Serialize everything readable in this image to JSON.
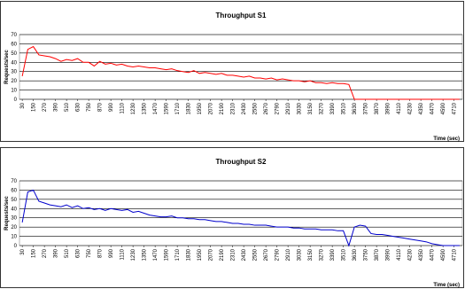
{
  "chart_data": [
    {
      "type": "line",
      "title": "Throughput S1",
      "y_label": "Requests/sec",
      "x_label": "Time (sec)",
      "color": "#ff0000",
      "grid": true,
      "x": [
        30,
        90,
        150,
        210,
        270,
        330,
        390,
        450,
        510,
        570,
        630,
        690,
        750,
        810,
        870,
        930,
        990,
        1050,
        1110,
        1170,
        1230,
        1290,
        1350,
        1410,
        1470,
        1530,
        1590,
        1650,
        1710,
        1770,
        1830,
        1890,
        1950,
        2010,
        2070,
        2130,
        2190,
        2250,
        2310,
        2370,
        2430,
        2490,
        2550,
        2610,
        2670,
        2730,
        2790,
        2850,
        2910,
        2970,
        3030,
        3090,
        3150,
        3210,
        3270,
        3330,
        3390,
        3450,
        3510,
        3570,
        3630,
        3690,
        3750,
        3810,
        3870,
        3930,
        3990,
        4050,
        4110,
        4170,
        4230,
        4290,
        4350,
        4410,
        4470,
        4530,
        4590,
        4650,
        4710,
        4770
      ],
      "values": [
        25,
        54,
        57,
        48,
        47,
        46,
        44,
        41,
        43,
        42,
        44,
        40,
        40,
        36,
        41,
        38,
        39,
        37,
        38,
        36,
        35,
        36,
        35,
        34,
        34,
        33,
        32,
        33,
        31,
        30,
        29,
        31,
        28,
        29,
        28,
        27,
        28,
        26,
        26,
        25,
        24,
        25,
        23,
        23,
        22,
        23,
        21,
        22,
        21,
        20,
        20,
        19,
        20,
        18,
        18,
        17,
        18,
        17,
        17,
        16,
        0,
        0,
        0,
        0,
        0,
        0,
        0,
        0,
        0,
        0,
        0,
        0,
        0,
        0,
        0,
        0,
        0,
        0,
        0,
        0
      ],
      "xlim": [
        0,
        4800
      ],
      "xticks": [
        30,
        150,
        270,
        390,
        510,
        630,
        750,
        870,
        990,
        1110,
        1230,
        1350,
        1470,
        1590,
        1710,
        1830,
        1950,
        2070,
        2190,
        2310,
        2430,
        2550,
        2670,
        2790,
        2910,
        3030,
        3150,
        3270,
        3390,
        3510,
        3630,
        3750,
        3870,
        3990,
        4110,
        4230,
        4350,
        4470,
        4590,
        4710
      ],
      "ylim": [
        0,
        70
      ],
      "yticks": [
        0,
        10,
        20,
        30,
        40,
        50,
        60,
        70
      ]
    },
    {
      "type": "line",
      "title": "Throughput S2",
      "y_label": "Requests/sec",
      "x_label": "Time (sec)",
      "color": "#0000cc",
      "grid": true,
      "x": [
        30,
        90,
        150,
        210,
        270,
        330,
        390,
        450,
        510,
        570,
        630,
        690,
        750,
        810,
        870,
        930,
        990,
        1050,
        1110,
        1170,
        1230,
        1290,
        1350,
        1410,
        1470,
        1530,
        1590,
        1650,
        1710,
        1770,
        1830,
        1890,
        1950,
        2010,
        2070,
        2130,
        2190,
        2250,
        2310,
        2370,
        2430,
        2490,
        2550,
        2610,
        2670,
        2730,
        2790,
        2850,
        2910,
        2970,
        3030,
        3090,
        3150,
        3210,
        3270,
        3330,
        3390,
        3450,
        3510,
        3570,
        3630,
        3690,
        3750,
        3810,
        3870,
        3930,
        3990,
        4050,
        4110,
        4170,
        4230,
        4290,
        4350,
        4410,
        4470,
        4530,
        4590,
        4650,
        4710,
        4770
      ],
      "values": [
        25,
        58,
        60,
        48,
        46,
        44,
        43,
        42,
        44,
        41,
        43,
        40,
        41,
        39,
        40,
        38,
        40,
        39,
        38,
        39,
        36,
        37,
        35,
        33,
        32,
        31,
        31,
        32,
        30,
        30,
        29,
        29,
        28,
        28,
        27,
        26,
        26,
        25,
        24,
        24,
        23,
        23,
        22,
        22,
        22,
        21,
        20,
        20,
        20,
        19,
        19,
        18,
        18,
        18,
        17,
        17,
        17,
        16,
        16,
        0,
        20,
        22,
        21,
        13,
        12,
        12,
        11,
        10,
        9,
        8,
        7,
        6,
        5,
        4,
        2,
        1,
        0,
        0,
        0,
        0
      ],
      "xlim": [
        0,
        4800
      ],
      "xticks": [
        30,
        150,
        270,
        390,
        510,
        630,
        750,
        870,
        990,
        1110,
        1230,
        1350,
        1470,
        1590,
        1710,
        1830,
        1950,
        2070,
        2190,
        2310,
        2430,
        2550,
        2670,
        2790,
        2910,
        3030,
        3150,
        3270,
        3390,
        3510,
        3630,
        3750,
        3870,
        3990,
        4110,
        4230,
        4350,
        4470,
        4590,
        4710
      ],
      "ylim": [
        0,
        70
      ],
      "yticks": [
        0,
        10,
        20,
        30,
        40,
        50,
        60,
        70
      ]
    }
  ]
}
